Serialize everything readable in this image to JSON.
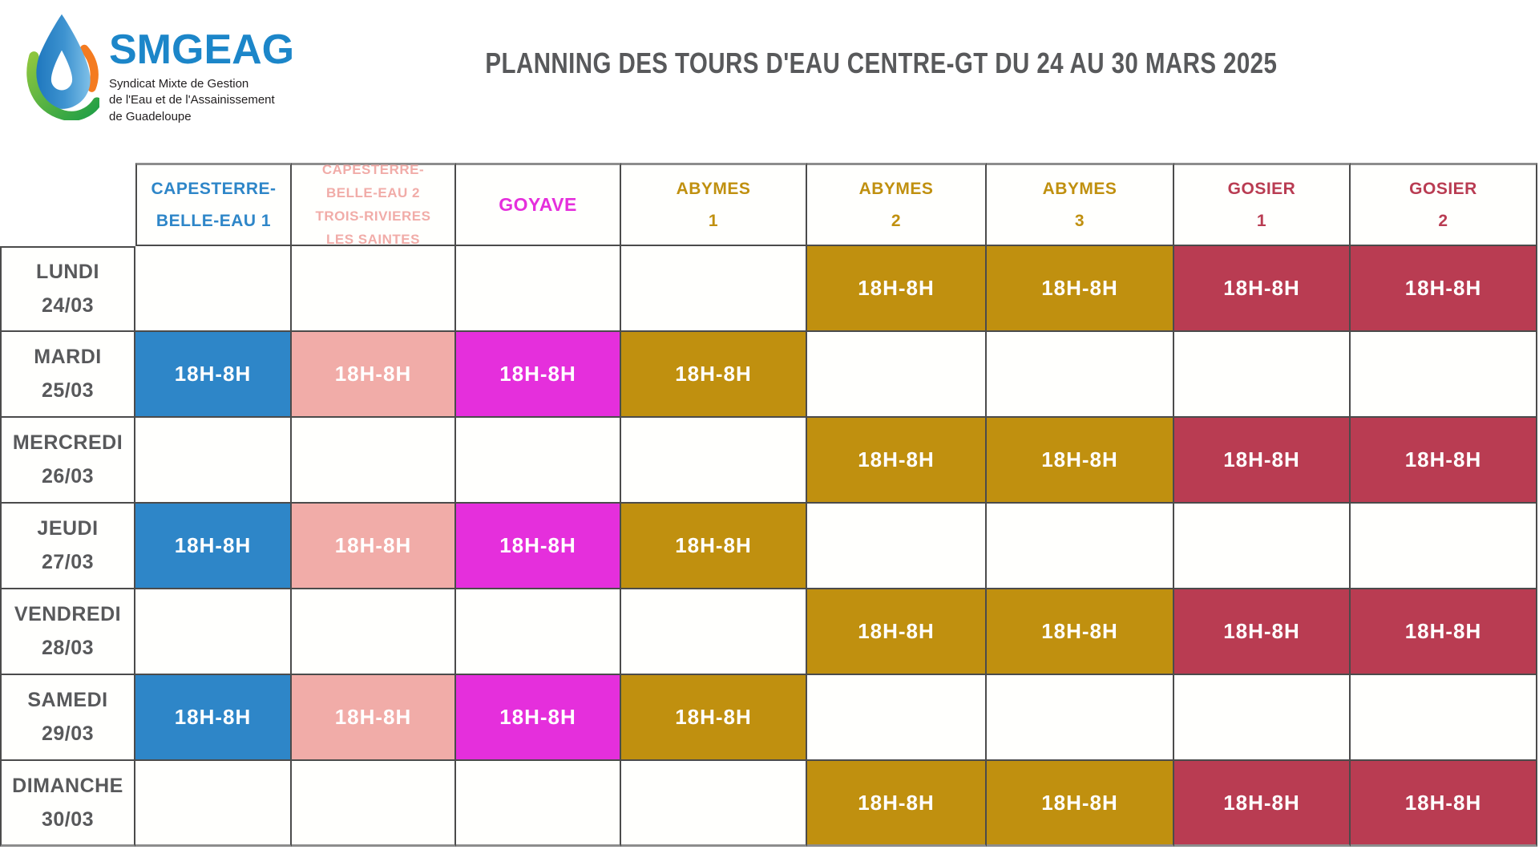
{
  "logo": {
    "brand": "SMGEAG",
    "tagline_lines": [
      "Syndicat Mixte de Gestion",
      "de l'Eau et de l'Assainissement",
      "de Guadeloupe"
    ]
  },
  "header": {
    "title": "PLANNING DES TOURS D'EAU CENTRE-GT DU 24 AU 30 MARS 2025"
  },
  "colors": {
    "blue": "#2E86C8",
    "pink": "#F1ACA8",
    "magenta": "#E52FDC",
    "gold": "#C0900F",
    "red": "#B93C52",
    "day_gray": "#58595B",
    "brand_blue": "#1C86C9",
    "cell_text": "#FFFFFF",
    "drop_dark_blue": "#1B74BC",
    "drop_light_blue": "#7FC0E8",
    "leaf_light_green": "#8DC63F",
    "leaf_dark_green": "#1E9E46",
    "accent_orange": "#F47B20"
  },
  "table": {
    "columns": [
      {
        "id": "cbe1",
        "lines": [
          "CAPESTERRE-",
          "BELLE-EAU 1"
        ],
        "color": "blue"
      },
      {
        "id": "cbe2",
        "lines": [
          "CAPESTERRE-",
          "BELLE-EAU 2",
          "TROIS-RIVIERES",
          "LES SAINTES"
        ],
        "color": "pink"
      },
      {
        "id": "goyave",
        "lines": [
          "GOYAVE"
        ],
        "color": "magenta"
      },
      {
        "id": "abymes1",
        "lines": [
          "ABYMES",
          "1"
        ],
        "color": "gold"
      },
      {
        "id": "abymes2",
        "lines": [
          "ABYMES",
          "2"
        ],
        "color": "gold"
      },
      {
        "id": "abymes3",
        "lines": [
          "ABYMES",
          "3"
        ],
        "color": "gold"
      },
      {
        "id": "gosier1",
        "lines": [
          "GOSIER",
          "1"
        ],
        "color": "red"
      },
      {
        "id": "gosier2",
        "lines": [
          "GOSIER",
          "2"
        ],
        "color": "red"
      }
    ],
    "rows": [
      {
        "day": "LUNDI",
        "date": "24/03",
        "cells": [
          null,
          null,
          null,
          null,
          "18H-8H",
          "18H-8H",
          "18H-8H",
          "18H-8H"
        ]
      },
      {
        "day": "MARDI",
        "date": "25/03",
        "cells": [
          "18H-8H",
          "18H-8H",
          "18H-8H",
          "18H-8H",
          null,
          null,
          null,
          null
        ]
      },
      {
        "day": "MERCREDI",
        "date": "26/03",
        "cells": [
          null,
          null,
          null,
          null,
          "18H-8H",
          "18H-8H",
          "18H-8H",
          "18H-8H"
        ]
      },
      {
        "day": "JEUDI",
        "date": "27/03",
        "cells": [
          "18H-8H",
          "18H-8H",
          "18H-8H",
          "18H-8H",
          null,
          null,
          null,
          null
        ]
      },
      {
        "day": "VENDREDI",
        "date": "28/03",
        "cells": [
          null,
          null,
          null,
          null,
          "18H-8H",
          "18H-8H",
          "18H-8H",
          "18H-8H"
        ]
      },
      {
        "day": "SAMEDI",
        "date": "29/03",
        "cells": [
          "18H-8H",
          "18H-8H",
          "18H-8H",
          "18H-8H",
          null,
          null,
          null,
          null
        ]
      },
      {
        "day": "DIMANCHE",
        "date": "30/03",
        "cells": [
          null,
          null,
          null,
          null,
          "18H-8H",
          "18H-8H",
          "18H-8H",
          "18H-8H"
        ]
      }
    ]
  }
}
